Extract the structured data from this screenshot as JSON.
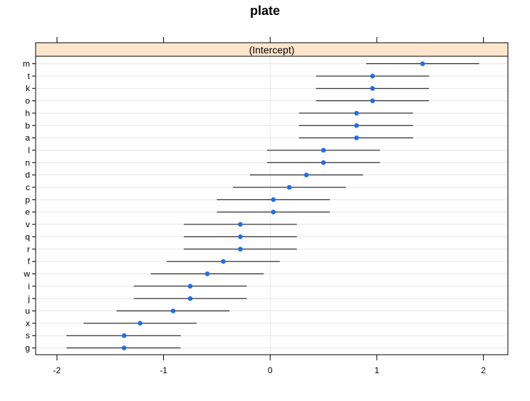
{
  "chart_data": {
    "type": "dotplot-interval",
    "title": "plate",
    "strip_label": "(Intercept)",
    "xlabel": "",
    "ylabel": "",
    "xlim": [
      -2.2,
      2.23
    ],
    "x_ticks": [
      -2,
      -1,
      0,
      1,
      2
    ],
    "x_tick_labels": [
      "-2",
      "-1",
      "0",
      "1",
      "2"
    ],
    "grid": true,
    "point_color": "#1f6ee8",
    "line_color": "#000000",
    "strip_color": "#ffe5cc",
    "grid_color": "#e6e6e6",
    "categories": [
      "m",
      "t",
      "k",
      "o",
      "h",
      "b",
      "a",
      "l",
      "n",
      "d",
      "c",
      "p",
      "e",
      "v",
      "q",
      "r",
      "f",
      "w",
      "i",
      "j",
      "u",
      "x",
      "s",
      "g"
    ],
    "estimate": [
      1.43,
      0.96,
      0.96,
      0.96,
      0.81,
      0.81,
      0.81,
      0.5,
      0.5,
      0.34,
      0.18,
      0.03,
      0.03,
      -0.28,
      -0.28,
      -0.28,
      -0.44,
      -0.59,
      -0.75,
      -0.75,
      -0.91,
      -1.22,
      -1.37,
      -1.37
    ],
    "lower": [
      0.9,
      0.43,
      0.43,
      0.43,
      0.27,
      0.27,
      0.27,
      -0.03,
      -0.03,
      -0.19,
      -0.35,
      -0.5,
      -0.5,
      -0.81,
      -0.81,
      -0.81,
      -0.97,
      -1.12,
      -1.28,
      -1.28,
      -1.44,
      -1.75,
      -1.91,
      -1.91
    ],
    "upper": [
      1.96,
      1.49,
      1.49,
      1.49,
      1.34,
      1.34,
      1.34,
      1.03,
      1.03,
      0.87,
      0.71,
      0.56,
      0.56,
      0.25,
      0.25,
      0.25,
      0.09,
      -0.06,
      -0.22,
      -0.22,
      -0.38,
      -0.69,
      -0.84,
      -0.84
    ]
  }
}
